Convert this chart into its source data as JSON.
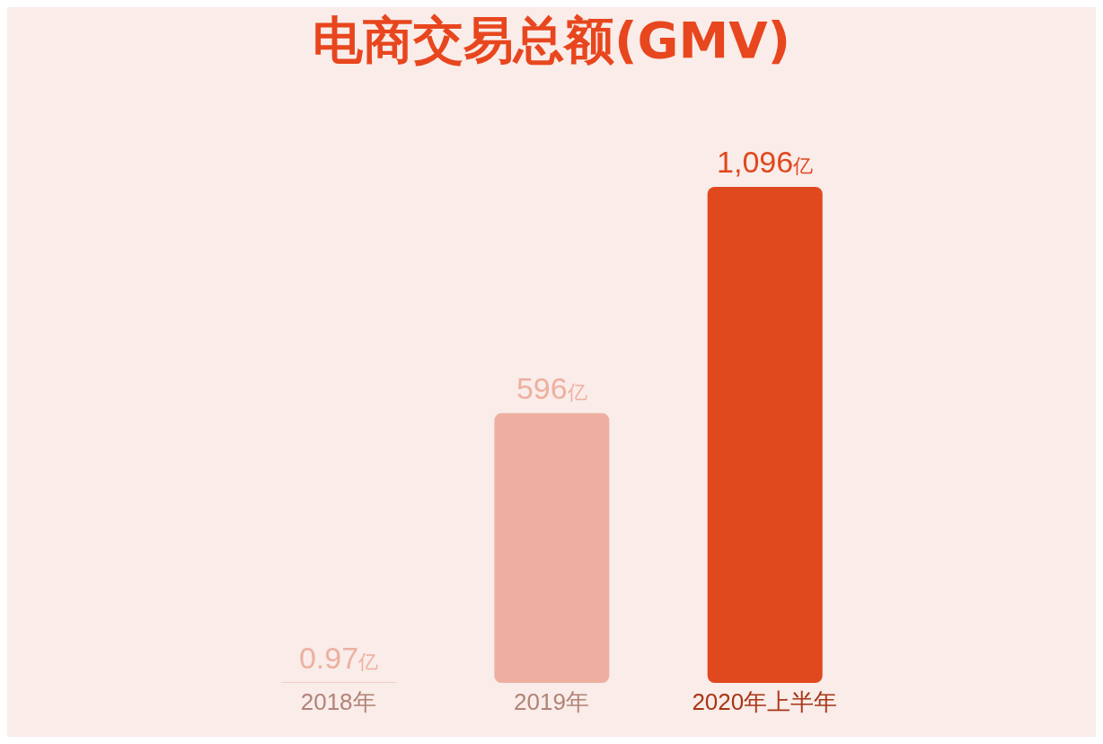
{
  "chart_data": {
    "type": "bar",
    "title": "电商交易总额(GMV)",
    "categories": [
      "2018年",
      "2019年",
      "2020年上半年"
    ],
    "values": [
      0.97,
      596,
      1096
    ],
    "colors": [
      "#edb0a0",
      "#edb0a0",
      "#e0481e"
    ],
    "value_labels": [
      "0.97亿",
      "596亿",
      "1,096亿"
    ],
    "grid": false,
    "legend": false
  }
}
